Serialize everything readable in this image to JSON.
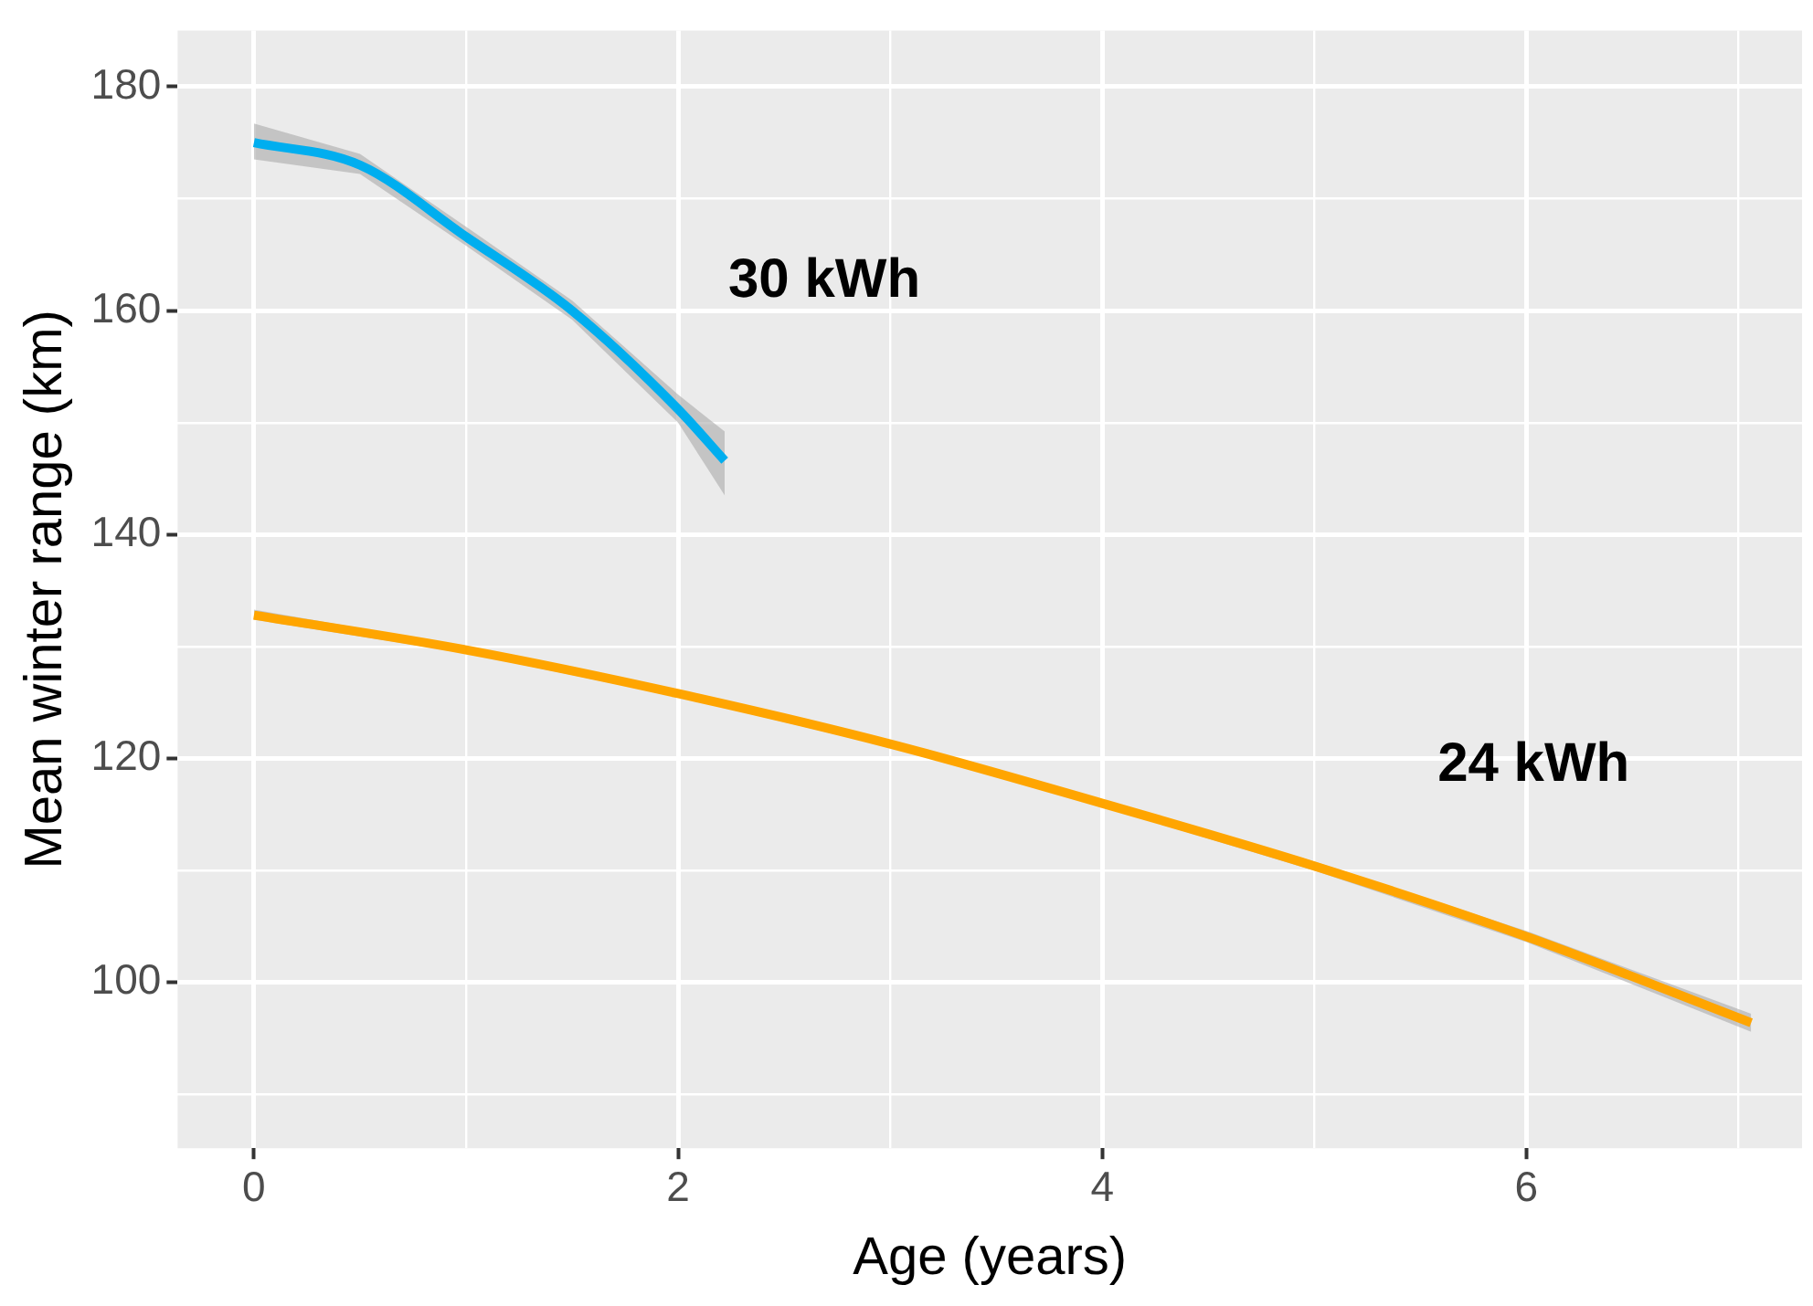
{
  "chart_data": {
    "type": "line",
    "xlabel": "Age (years)",
    "ylabel": "Mean winter range (km)",
    "xlim": [
      -0.36,
      7.3
    ],
    "xticks": [
      0,
      {
        "value": 1,
        "label": null
      },
      2,
      {
        "value": 3,
        "label": null
      },
      4,
      {
        "value": 5,
        "label": null
      },
      6,
      {
        "value": 7,
        "label": null
      }
    ],
    "ylim": [
      85.2,
      185
    ],
    "yticks": [
      {
        "value": 90,
        "label": null
      },
      100,
      {
        "value": 110,
        "label": null
      },
      120,
      {
        "value": 130,
        "label": null
      },
      140,
      {
        "value": 150,
        "label": null
      },
      160,
      {
        "value": 170,
        "label": null
      },
      180
    ],
    "grid": true,
    "legend": false,
    "marker": "none",
    "line_style": "solid",
    "series": [
      {
        "name": "30 kWh",
        "color": "#00aeef",
        "x": [
          0,
          0.5,
          1,
          1.5,
          2,
          2.22
        ],
        "values": [
          175.0,
          173.0,
          166.6,
          160.0,
          151.2,
          146.6
        ],
        "lower": [
          173.5,
          172.2,
          165.8,
          159.2,
          150.0,
          143.5
        ],
        "upper": [
          176.7,
          174.0,
          167.5,
          160.9,
          152.5,
          149.2
        ]
      },
      {
        "name": "24 kWh",
        "color": "#ffa500",
        "x": [
          0,
          1,
          2,
          3,
          4,
          5,
          6,
          7.06
        ],
        "values": [
          132.8,
          129.7,
          125.8,
          121.3,
          116.0,
          110.4,
          104.1,
          96.4
        ],
        "lower": [
          132.4,
          129.4,
          125.5,
          121.0,
          115.7,
          110.0,
          103.6,
          95.6
        ],
        "upper": [
          133.3,
          130.0,
          126.1,
          121.6,
          116.3,
          110.8,
          104.6,
          97.2
        ]
      }
    ]
  }
}
